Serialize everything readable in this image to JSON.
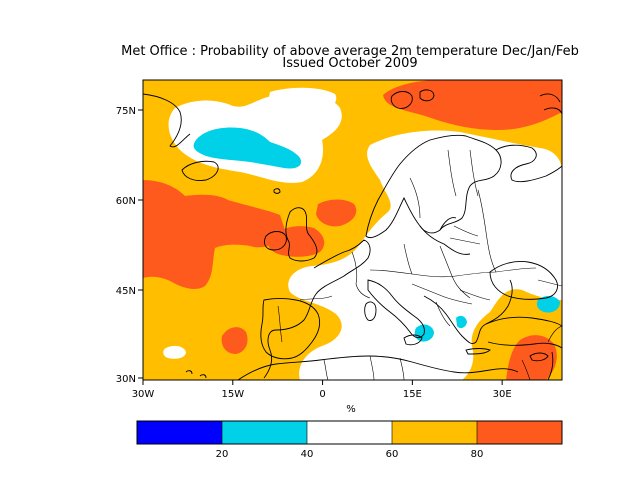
{
  "title_line1": "Met Office : Probability of above average 2m temperature Dec/Jan/Feb",
  "title_line2": "Issued October 2009",
  "map": {
    "lat_ticks": [
      {
        "value": 75,
        "label": "75N"
      },
      {
        "value": 60,
        "label": "60N"
      },
      {
        "value": 45,
        "label": "45N"
      },
      {
        "value": 30,
        "label": "30N"
      }
    ],
    "lon_ticks": [
      {
        "value": -30,
        "label": "30W"
      },
      {
        "value": -15,
        "label": "15W"
      },
      {
        "value": 0,
        "label": "0"
      },
      {
        "value": 15,
        "label": "15E"
      },
      {
        "value": 30,
        "label": "30E"
      }
    ],
    "lon_range": [
      -30,
      40
    ],
    "lat_range": [
      30,
      80
    ],
    "xlabel": "%"
  },
  "legend": {
    "bins": [
      {
        "from": 0,
        "to": 20,
        "color": "#0000ff"
      },
      {
        "from": 20,
        "to": 40,
        "color": "#00d0e8"
      },
      {
        "from": 40,
        "to": 60,
        "color": "#ffffff"
      },
      {
        "from": 60,
        "to": 80,
        "color": "#ffbf00"
      },
      {
        "from": 80,
        "to": 100,
        "color": "#ff5a1e"
      }
    ],
    "tick_labels": [
      "20",
      "40",
      "60",
      "80"
    ]
  },
  "colors": {
    "background_field": "#ffbf00",
    "high_prob": "#ff5a1e",
    "mid_prob": "#ffffff",
    "low_prob": "#00d0e8"
  }
}
